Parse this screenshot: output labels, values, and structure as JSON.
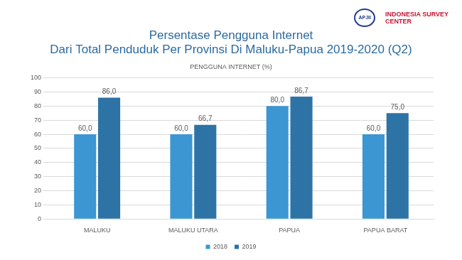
{
  "chart_data": {
    "type": "bar",
    "title": [
      "Persentase Pengguna Internet",
      "Dari Total Penduduk Per Provinsi Di Maluku-Papua 2019-2020 (Q2)"
    ],
    "subtitle": "PENGGUNA INTERNET (%)",
    "logos": [
      "APJII",
      "INDONESIA SURVEY CENTER"
    ],
    "categories": [
      "MALUKU",
      "MALUKU UTARA",
      "PAPUA",
      "PAPUA BARAT"
    ],
    "series": [
      {
        "name": "2018",
        "color": "#3c96d2",
        "values": [
          60,
          60,
          80,
          60
        ],
        "value_labels": [
          "60,0",
          "60,0",
          "80,0",
          "60,0"
        ]
      },
      {
        "name": "2019",
        "color": "#2e73a6",
        "values": [
          86,
          66.7,
          86.7,
          75
        ],
        "value_labels": [
          "86,0",
          "66,7",
          "86,7",
          "75,0"
        ]
      }
    ],
    "ylim": [
      0,
      100
    ],
    "yticks": [
      0,
      10,
      20,
      30,
      40,
      50,
      60,
      70,
      80,
      90,
      100
    ],
    "grid": true,
    "legend": "bottom",
    "data_labels": true
  }
}
